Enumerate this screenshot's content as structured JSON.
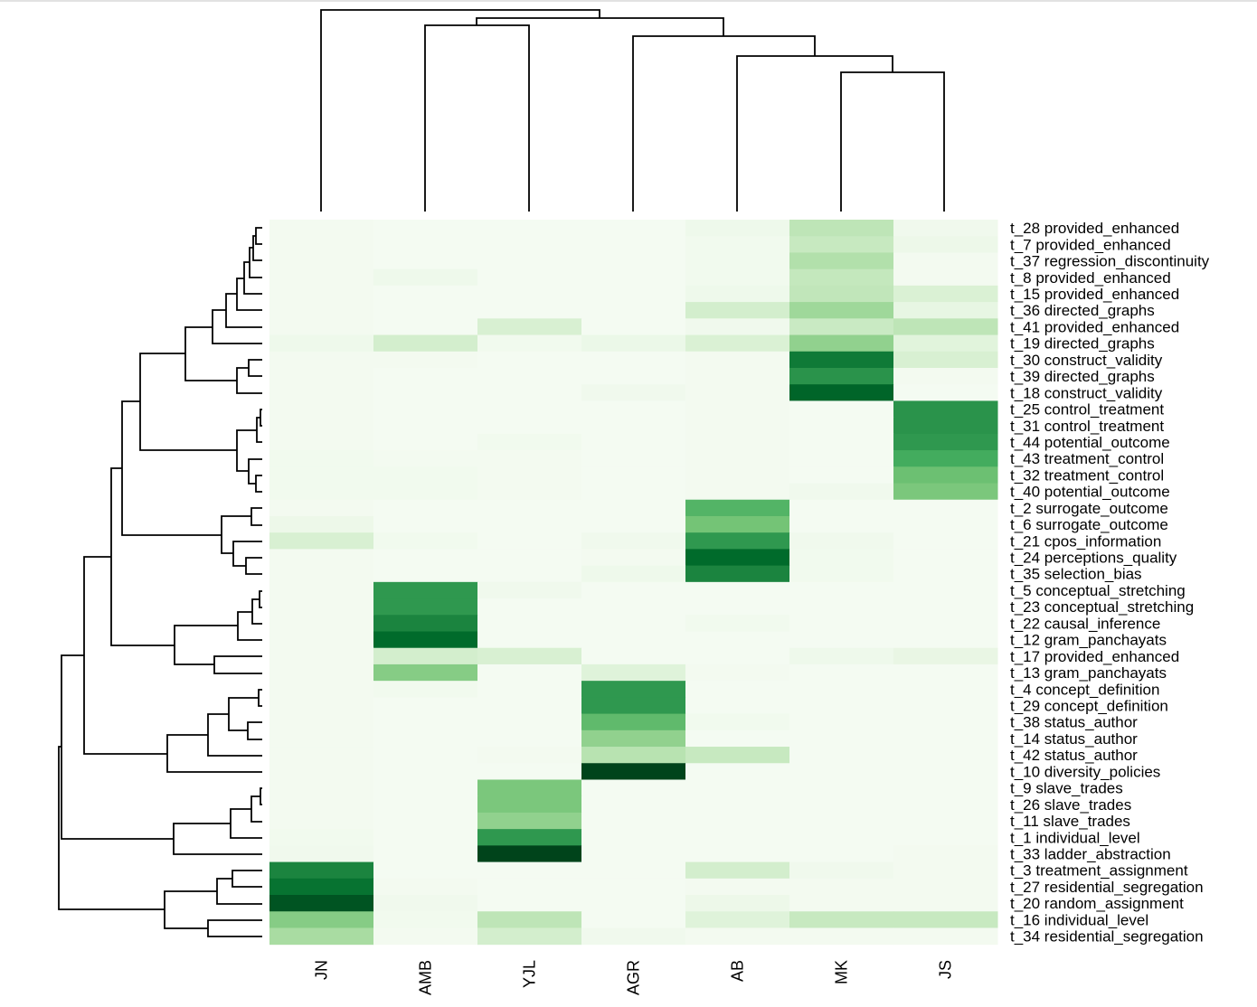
{
  "chart_data": {
    "type": "heatmap",
    "title": "",
    "colormap": "Greens",
    "columns": [
      "JN",
      "AMB",
      "YJL",
      "AGR",
      "AB",
      "MK",
      "JS"
    ],
    "rows": [
      "t_28 provided_enhanced",
      "t_7 provided_enhanced",
      "t_37 regression_discontinuity",
      "t_8 provided_enhanced",
      "t_15 provided_enhanced",
      "t_36 directed_graphs",
      "t_41 provided_enhanced",
      "t_19 directed_graphs",
      "t_30 construct_validity",
      "t_39 directed_graphs",
      "t_18 construct_validity",
      "t_25 control_treatment",
      "t_31 control_treatment",
      "t_44 potential_outcome",
      "t_43 treatment_control",
      "t_32 treatment_control",
      "t_40 potential_outcome",
      "t_2 surrogate_outcome",
      "t_6 surrogate_outcome",
      "t_21 cpos_information",
      "t_24 perceptions_quality",
      "t_35 selection_bias",
      "t_5 conceptual_stretching",
      "t_23 conceptual_stretching",
      "t_22 causal_inference",
      "t_12 gram_panchayats",
      "t_17 provided_enhanced",
      "t_13 gram_panchayats",
      "t_4 concept_definition",
      "t_29 concept_definition",
      "t_38 status_author",
      "t_14 status_author",
      "t_42 status_author",
      "t_10 diversity_policies",
      "t_9 slave_trades",
      "t_26 slave_trades",
      "t_11 slave_trades",
      "t_1 individual_level",
      "t_33 ladder_abstraction",
      "t_3 treatment_assignment",
      "t_27 residential_segregation",
      "t_20 random_assignment",
      "t_16 individual_level",
      "t_34 residential_segregation"
    ],
    "values": [
      [
        0.03,
        0.02,
        0.02,
        0.02,
        0.06,
        0.28,
        0.05
      ],
      [
        0.03,
        0.02,
        0.02,
        0.02,
        0.04,
        0.25,
        0.07
      ],
      [
        0.03,
        0.02,
        0.02,
        0.02,
        0.04,
        0.32,
        0.03
      ],
      [
        0.03,
        0.06,
        0.02,
        0.02,
        0.04,
        0.26,
        0.03
      ],
      [
        0.03,
        0.02,
        0.02,
        0.02,
        0.06,
        0.27,
        0.17
      ],
      [
        0.03,
        0.02,
        0.02,
        0.02,
        0.2,
        0.38,
        0.11
      ],
      [
        0.03,
        0.02,
        0.18,
        0.02,
        0.05,
        0.24,
        0.28
      ],
      [
        0.06,
        0.2,
        0.04,
        0.08,
        0.17,
        0.42,
        0.14
      ],
      [
        0.03,
        0.03,
        0.02,
        0.02,
        0.03,
        0.82,
        0.18
      ],
      [
        0.03,
        0.02,
        0.02,
        0.02,
        0.03,
        0.72,
        0.03
      ],
      [
        0.03,
        0.02,
        0.02,
        0.05,
        0.03,
        0.9,
        0.02
      ],
      [
        0.03,
        0.02,
        0.02,
        0.02,
        0.03,
        0.02,
        0.72
      ],
      [
        0.03,
        0.02,
        0.02,
        0.02,
        0.03,
        0.02,
        0.72
      ],
      [
        0.03,
        0.02,
        0.04,
        0.02,
        0.03,
        0.02,
        0.7
      ],
      [
        0.04,
        0.03,
        0.03,
        0.02,
        0.03,
        0.02,
        0.62
      ],
      [
        0.04,
        0.04,
        0.03,
        0.02,
        0.03,
        0.02,
        0.52
      ],
      [
        0.04,
        0.04,
        0.03,
        0.02,
        0.03,
        0.05,
        0.48
      ],
      [
        0.03,
        0.02,
        0.02,
        0.02,
        0.58,
        0.02,
        0.02
      ],
      [
        0.07,
        0.02,
        0.02,
        0.02,
        0.5,
        0.02,
        0.02
      ],
      [
        0.18,
        0.04,
        0.02,
        0.05,
        0.7,
        0.05,
        0.02
      ],
      [
        0.03,
        0.02,
        0.02,
        0.03,
        0.88,
        0.04,
        0.02
      ],
      [
        0.03,
        0.02,
        0.02,
        0.06,
        0.78,
        0.04,
        0.02
      ],
      [
        0.03,
        0.7,
        0.05,
        0.02,
        0.02,
        0.02,
        0.02
      ],
      [
        0.03,
        0.7,
        0.02,
        0.02,
        0.02,
        0.02,
        0.02
      ],
      [
        0.03,
        0.78,
        0.02,
        0.02,
        0.04,
        0.02,
        0.02
      ],
      [
        0.03,
        0.88,
        0.02,
        0.02,
        0.02,
        0.02,
        0.02
      ],
      [
        0.03,
        0.2,
        0.18,
        0.02,
        0.02,
        0.06,
        0.1
      ],
      [
        0.03,
        0.45,
        0.02,
        0.15,
        0.03,
        0.02,
        0.02
      ],
      [
        0.03,
        0.04,
        0.02,
        0.7,
        0.02,
        0.02,
        0.02
      ],
      [
        0.03,
        0.02,
        0.02,
        0.7,
        0.02,
        0.02,
        0.02
      ],
      [
        0.03,
        0.02,
        0.02,
        0.55,
        0.04,
        0.02,
        0.02
      ],
      [
        0.03,
        0.02,
        0.02,
        0.42,
        0.02,
        0.02,
        0.02
      ],
      [
        0.03,
        0.02,
        0.03,
        0.3,
        0.25,
        0.02,
        0.02
      ],
      [
        0.03,
        0.02,
        0.02,
        1.0,
        0.02,
        0.02,
        0.02
      ],
      [
        0.03,
        0.02,
        0.48,
        0.02,
        0.02,
        0.02,
        0.02
      ],
      [
        0.03,
        0.02,
        0.48,
        0.02,
        0.02,
        0.02,
        0.02
      ],
      [
        0.03,
        0.02,
        0.42,
        0.02,
        0.02,
        0.02,
        0.02
      ],
      [
        0.04,
        0.02,
        0.7,
        0.02,
        0.02,
        0.02,
        0.02
      ],
      [
        0.05,
        0.02,
        1.0,
        0.02,
        0.02,
        0.02,
        0.03
      ],
      [
        0.78,
        0.02,
        0.02,
        0.02,
        0.2,
        0.05,
        0.03
      ],
      [
        0.85,
        0.03,
        0.02,
        0.02,
        0.03,
        0.03,
        0.03
      ],
      [
        0.95,
        0.05,
        0.02,
        0.02,
        0.07,
        0.03,
        0.03
      ],
      [
        0.45,
        0.04,
        0.28,
        0.02,
        0.15,
        0.25,
        0.25
      ],
      [
        0.35,
        0.03,
        0.2,
        0.05,
        0.03,
        0.03,
        0.03
      ]
    ],
    "xlabel": "",
    "ylabel": "",
    "colorbar": false
  }
}
